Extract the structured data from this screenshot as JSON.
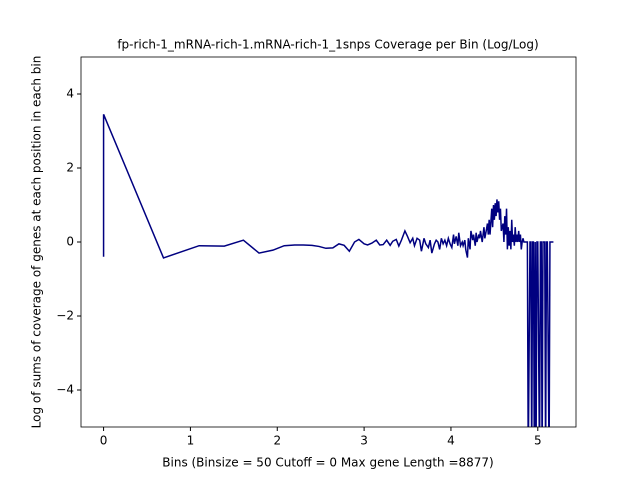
{
  "chart_data": {
    "type": "line",
    "title": "fp-rich-1_mRNA-rich-1.mRNA-rich-1_1snps Coverage per Bin (Log/Log)",
    "x_label": "Bins  (Binsize = 50 Cutoff = 0 Max gene Length =8877)",
    "y_label": "Log of sums of coverage of genes at each position in each bin",
    "color": "#000080",
    "xlim": [
      -0.26,
      5.44
    ],
    "ylim": [
      -5,
      5
    ],
    "xticks": [
      0,
      1,
      2,
      3,
      4,
      5
    ],
    "yticks": [
      {
        "value": -4,
        "label": "−4"
      },
      {
        "value": -2,
        "label": "−2"
      },
      0,
      2,
      4
    ],
    "x": [
      0,
      0,
      0.69,
      1.1,
      1.39,
      1.61,
      1.79,
      1.95,
      2.08,
      2.2,
      2.3,
      2.4,
      2.48,
      2.56,
      2.64,
      2.71,
      2.77,
      2.83,
      2.89,
      2.94,
      3.0,
      3.04,
      3.09,
      3.14,
      3.18,
      3.22,
      3.26,
      3.3,
      3.33,
      3.37,
      3.4,
      3.43,
      3.47,
      3.5,
      3.53,
      3.56,
      3.58,
      3.61,
      3.64,
      3.66,
      3.69,
      3.71,
      3.74,
      3.76,
      3.78,
      3.81,
      3.83,
      3.85,
      3.87,
      3.89,
      3.91,
      3.93,
      3.95,
      3.97,
      3.99,
      4.01,
      4.03,
      4.04,
      4.06,
      4.08,
      4.09,
      4.11,
      4.13,
      4.14,
      4.16,
      4.17,
      4.19,
      4.2,
      4.22,
      4.23,
      4.25,
      4.26,
      4.28,
      4.29,
      4.3,
      4.32,
      4.33,
      4.34,
      4.36,
      4.37,
      4.38,
      4.39,
      4.41,
      4.42,
      4.43,
      4.44,
      4.45,
      4.47,
      4.48,
      4.49,
      4.5,
      4.51,
      4.52,
      4.53,
      4.54,
      4.55,
      4.56,
      4.57,
      4.58,
      4.6,
      4.61,
      4.62,
      4.63,
      4.64,
      4.65,
      4.66,
      4.67,
      4.68,
      4.69,
      4.7,
      4.71,
      4.72,
      4.73,
      4.74,
      4.75,
      4.76,
      4.77,
      4.78,
      4.79,
      4.8,
      4.81,
      4.82,
      4.83,
      4.84,
      4.85,
      4.86,
      4.87,
      4.88,
      4.89,
      4.91,
      4.92,
      4.93,
      4.94,
      4.95,
      4.96,
      4.97,
      4.98,
      4.99,
      5.0,
      5.02,
      5.03,
      5.04,
      5.05,
      5.06,
      5.08,
      5.09,
      5.1,
      5.11,
      5.13,
      5.14,
      5.15,
      5.18
    ],
    "values": [
      -0.4,
      3.45,
      -0.43,
      -0.1,
      -0.11,
      0.05,
      -0.3,
      -0.22,
      -0.1,
      -0.08,
      -0.08,
      -0.09,
      -0.12,
      -0.17,
      -0.16,
      -0.05,
      -0.09,
      -0.25,
      0.0,
      0.07,
      -0.05,
      -0.08,
      -0.03,
      0.05,
      -0.08,
      -0.07,
      0.05,
      -0.09,
      0.02,
      0.07,
      -0.11,
      0.05,
      0.3,
      0.15,
      -0.02,
      0.1,
      -0.1,
      0.1,
      0.05,
      -0.25,
      0.1,
      -0.05,
      -0.15,
      0.05,
      -0.3,
      -0.05,
      0.05,
      0.0,
      -0.2,
      0.1,
      -0.05,
      0.05,
      -0.1,
      0.1,
      -0.05,
      -0.15,
      0.2,
      -0.05,
      0.15,
      -0.1,
      0.25,
      -0.1,
      0.0,
      -0.1,
      0.05,
      -0.2,
      -0.42,
      0.1,
      -0.2,
      0.3,
      0.05,
      0.2,
      -0.1,
      0.25,
      0.0,
      0.2,
      0.1,
      0.3,
      0.0,
      0.2,
      0.4,
      0.1,
      0.35,
      0.5,
      0.2,
      0.6,
      0.2,
      0.9,
      0.4,
      1.0,
      0.6,
      1.05,
      0.7,
      1.15,
      0.8,
      1.1,
      0.6,
      0.9,
      0.3,
      0.5,
      0.0,
      0.7,
      0.2,
      0.9,
      -0.2,
      0.4,
      -0.1,
      0.3,
      -0.2,
      0.6,
      0.0,
      0.2,
      -0.1,
      0.4,
      0.0,
      0.2,
      0.0,
      0.3,
      0.0,
      0.2,
      -0.2,
      0.0,
      0.1,
      0.0,
      0.0,
      0.0,
      0.0,
      0.0,
      -6,
      0,
      0,
      -6,
      0,
      0,
      -6,
      0,
      -6,
      0,
      0,
      -6,
      0,
      0,
      -6,
      0,
      0,
      -6,
      0,
      0,
      -6,
      0,
      0,
      0
    ]
  }
}
